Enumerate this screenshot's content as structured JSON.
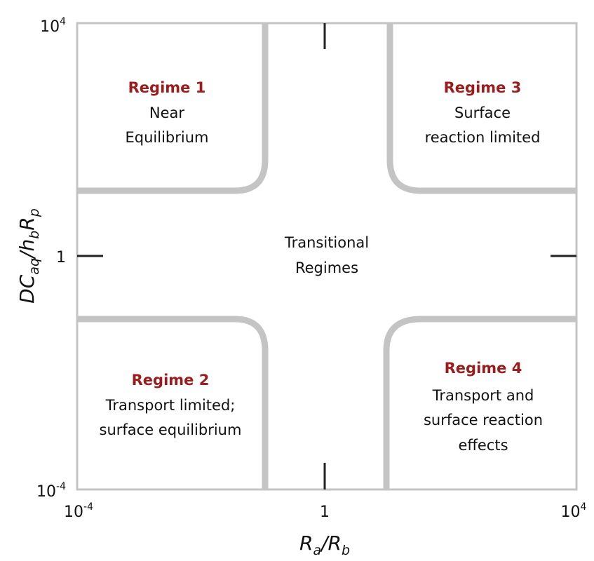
{
  "x_axis": {
    "label_main": "R",
    "label_sub1": "a",
    "label_sep": "/R",
    "label_sub2": "b",
    "ticks": [
      {
        "base": "10",
        "exp": "-4"
      },
      {
        "base": "1",
        "exp": ""
      },
      {
        "base": "10",
        "exp": "4"
      }
    ]
  },
  "y_axis": {
    "label_parts": [
      "DC",
      "aq",
      "/h",
      "b",
      "R",
      "p"
    ],
    "ticks": [
      {
        "base": "10",
        "exp": "4"
      },
      {
        "base": "1",
        "exp": ""
      },
      {
        "base": "10",
        "exp": "-4"
      }
    ]
  },
  "regions": {
    "regime1": {
      "title": "Regime 1",
      "lines": [
        "Near",
        "Equilibrium"
      ]
    },
    "regime3": {
      "title": "Regime 3",
      "lines": [
        "Surface",
        "reaction limited"
      ]
    },
    "transitional": {
      "lines": [
        "Transitional",
        "Regimes"
      ]
    },
    "regime2": {
      "title": "Regime 2",
      "lines": [
        "Transport limited;",
        "surface equilibrium"
      ]
    },
    "regime4": {
      "title": "Regime 4",
      "lines": [
        "Transport and",
        "surface reaction",
        "effects"
      ]
    }
  },
  "colors": {
    "regime_title": "#9b1c1c",
    "boundary": "#c4c4c4",
    "frame": "#c4c4c4",
    "text": "#111111"
  }
}
